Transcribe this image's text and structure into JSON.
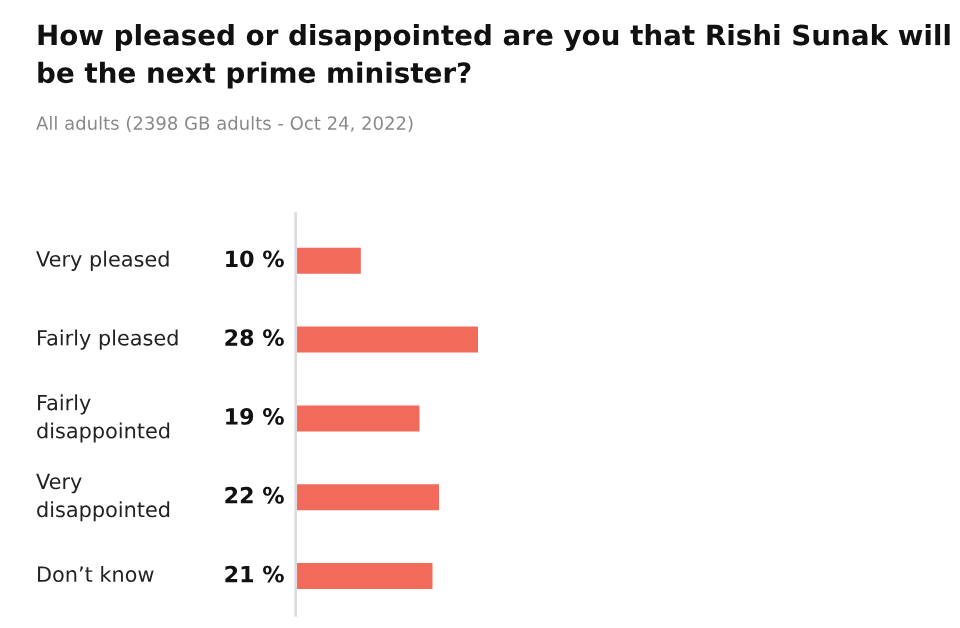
{
  "chart_data": {
    "type": "bar",
    "orientation": "horizontal",
    "title": "How pleased or disappointed are you that Rishi Sunak will be the next prime minister?",
    "subtitle": "All adults (2398 GB adults - Oct 24, 2022)",
    "categories": [
      "Very pleased",
      "Fairly pleased",
      "Fairly disappointed",
      "Very disappointed",
      "Don’t know"
    ],
    "values": [
      10,
      28,
      19,
      22,
      21
    ],
    "value_labels": [
      "10 %",
      "28 %",
      "19 %",
      "22 %",
      "21 %"
    ],
    "color": "#f26a5a"
  }
}
